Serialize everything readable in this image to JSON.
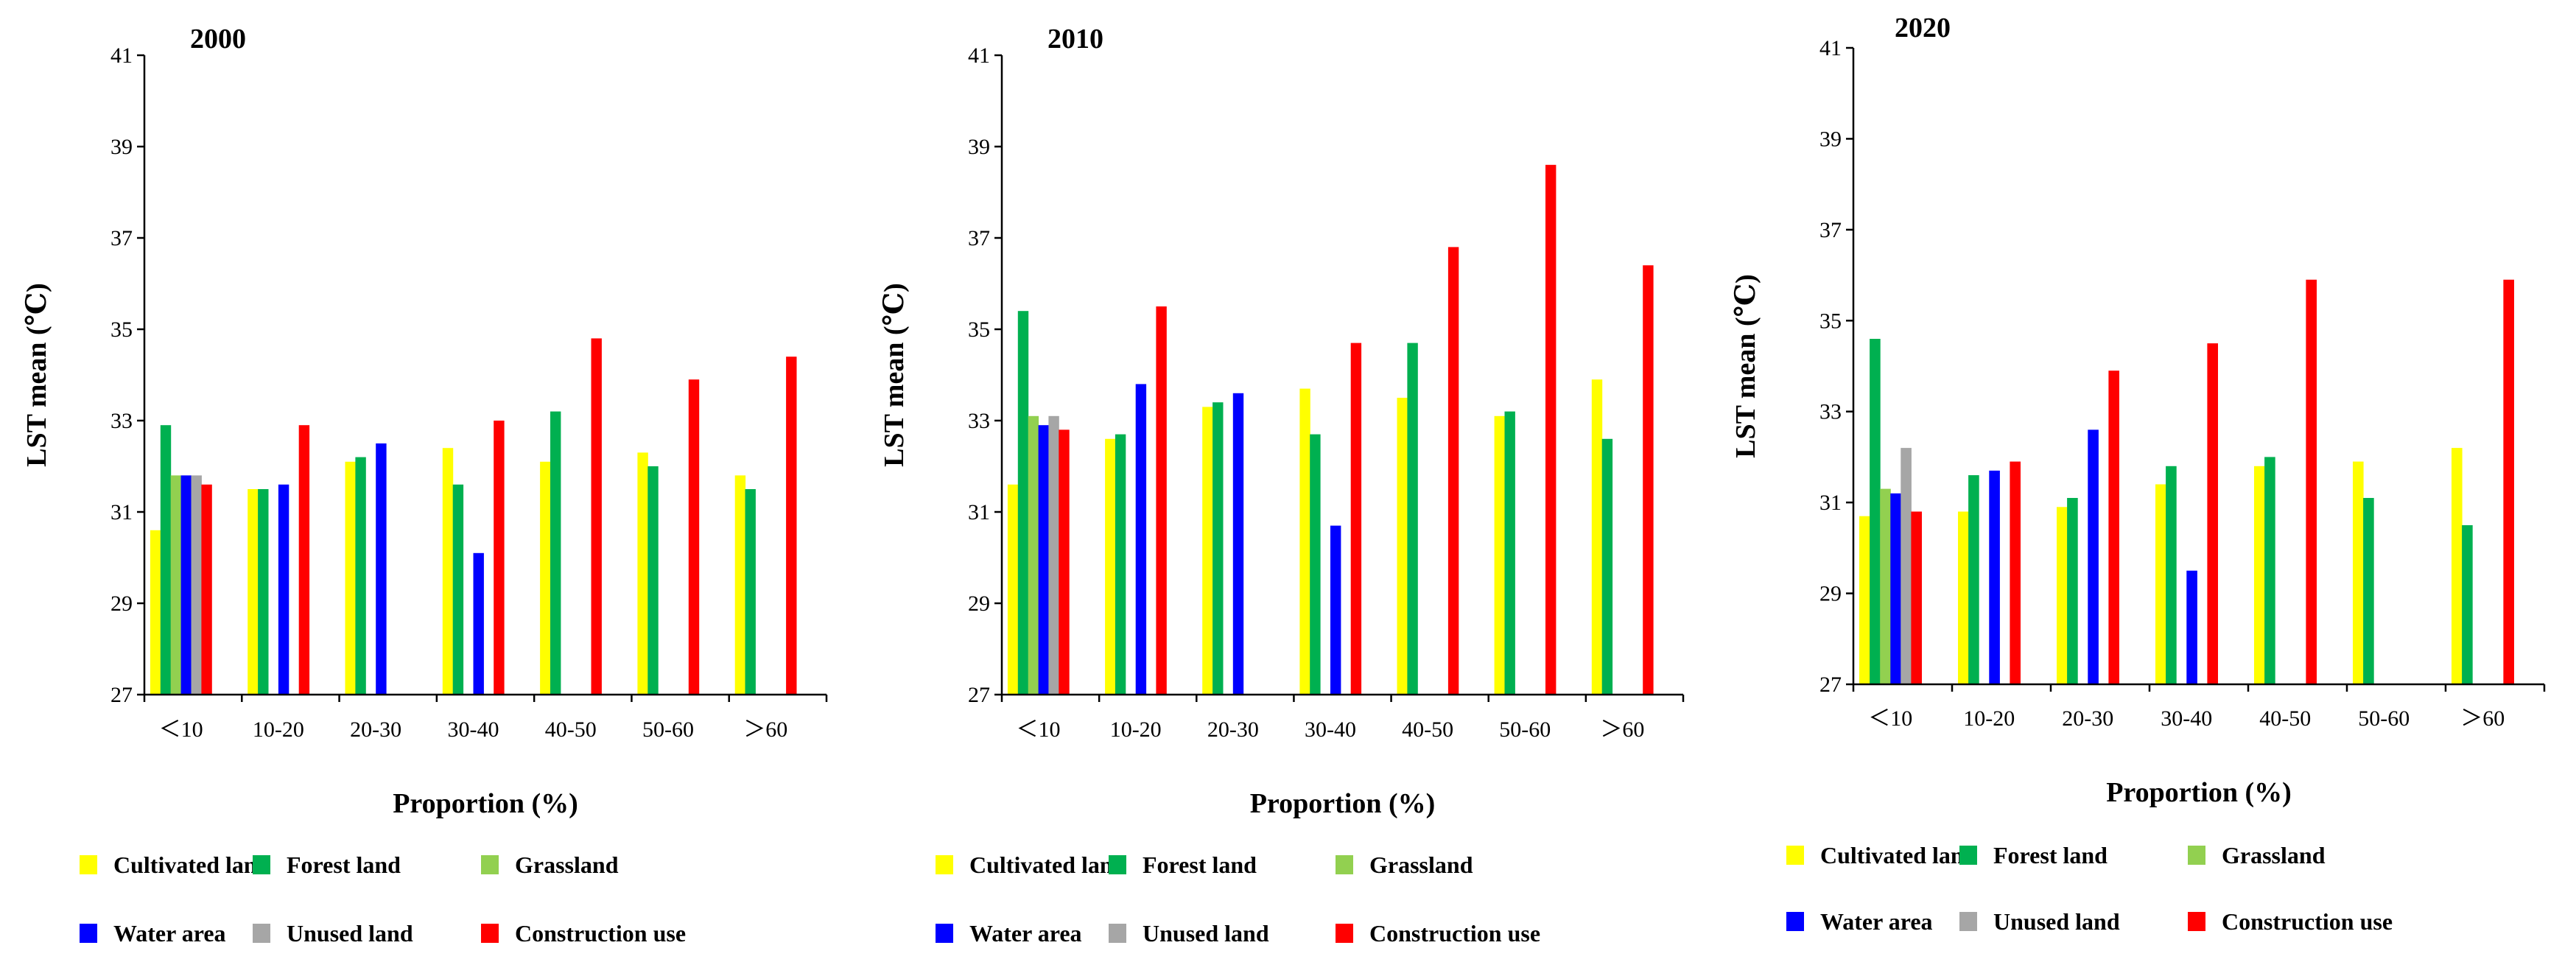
{
  "chart_data": [
    {
      "type": "bar",
      "title": "2000",
      "xlabel": "Proportion (%)",
      "ylabel": "LST mean (℃)",
      "ylim": [
        27,
        41
      ],
      "yticks": [
        27,
        29,
        31,
        33,
        35,
        37,
        39,
        41
      ],
      "grid": false,
      "categories": [
        "＜10",
        "10-20",
        "20-30",
        "30-40",
        "40-50",
        "50-60",
        "＞60"
      ],
      "series": [
        {
          "name": "Cultivated land",
          "color": "#FFFF00",
          "values": [
            30.6,
            31.5,
            32.1,
            32.4,
            32.1,
            32.3,
            31.8
          ]
        },
        {
          "name": "Forest land",
          "color": "#00B050",
          "values": [
            32.9,
            31.5,
            32.2,
            31.6,
            33.2,
            32.0,
            31.5
          ]
        },
        {
          "name": "Grassland",
          "color": "#92D050",
          "values": [
            31.8,
            null,
            null,
            null,
            null,
            null,
            null
          ]
        },
        {
          "name": "Water area",
          "color": "#0000FF",
          "values": [
            31.8,
            31.6,
            32.5,
            30.1,
            null,
            null,
            null
          ]
        },
        {
          "name": "Unused land",
          "color": "#A6A6A6",
          "values": [
            31.8,
            null,
            null,
            null,
            null,
            null,
            null
          ]
        },
        {
          "name": "Construction use",
          "color": "#FF0000",
          "values": [
            31.6,
            32.9,
            null,
            33.0,
            34.8,
            33.9,
            34.4
          ]
        }
      ]
    },
    {
      "type": "bar",
      "title": "2010",
      "xlabel": "Proportion (%)",
      "ylabel": "LST mean (℃)",
      "ylim": [
        27,
        41
      ],
      "yticks": [
        27,
        29,
        31,
        33,
        35,
        37,
        39,
        41
      ],
      "grid": false,
      "categories": [
        "＜10",
        "10-20",
        "20-30",
        "30-40",
        "40-50",
        "50-60",
        "＞60"
      ],
      "series": [
        {
          "name": "Cultivated land",
          "color": "#FFFF00",
          "values": [
            31.6,
            32.6,
            33.3,
            33.7,
            33.5,
            33.1,
            33.9
          ]
        },
        {
          "name": "Forest land",
          "color": "#00B050",
          "values": [
            35.4,
            32.7,
            33.4,
            32.7,
            34.7,
            33.2,
            32.6
          ]
        },
        {
          "name": "Grassland",
          "color": "#92D050",
          "values": [
            33.1,
            null,
            null,
            null,
            null,
            null,
            null
          ]
        },
        {
          "name": "Water area",
          "color": "#0000FF",
          "values": [
            32.9,
            33.8,
            33.6,
            30.7,
            null,
            null,
            null
          ]
        },
        {
          "name": "Unused land",
          "color": "#A6A6A6",
          "values": [
            33.1,
            null,
            null,
            null,
            null,
            null,
            null
          ]
        },
        {
          "name": "Construction use",
          "color": "#FF0000",
          "values": [
            32.8,
            35.5,
            null,
            34.7,
            36.8,
            38.6,
            36.4
          ]
        }
      ]
    },
    {
      "type": "bar",
      "title": "2020",
      "xlabel": "Proportion (%)",
      "ylabel": "LST mean (℃)",
      "ylim": [
        27,
        41
      ],
      "yticks": [
        27,
        29,
        31,
        33,
        35,
        37,
        39,
        41
      ],
      "grid": false,
      "categories": [
        "＜10",
        "10-20",
        "20-30",
        "30-40",
        "40-50",
        "50-60",
        "＞60"
      ],
      "series": [
        {
          "name": "Cultivated land",
          "color": "#FFFF00",
          "values": [
            30.7,
            30.8,
            30.9,
            31.4,
            31.8,
            31.9,
            32.2
          ]
        },
        {
          "name": "Forest land",
          "color": "#00B050",
          "values": [
            34.6,
            31.6,
            31.1,
            31.8,
            32.0,
            31.1,
            30.5
          ]
        },
        {
          "name": "Grassland",
          "color": "#92D050",
          "values": [
            31.3,
            null,
            null,
            null,
            null,
            null,
            null
          ]
        },
        {
          "name": "Water area",
          "color": "#0000FF",
          "values": [
            31.2,
            31.7,
            32.6,
            29.5,
            null,
            null,
            null
          ]
        },
        {
          "name": "Unused land",
          "color": "#A6A6A6",
          "values": [
            32.2,
            null,
            null,
            null,
            null,
            null,
            null
          ]
        },
        {
          "name": "Construction use",
          "color": "#FF0000",
          "values": [
            30.8,
            31.9,
            33.9,
            34.5,
            35.9,
            null,
            35.9
          ]
        }
      ]
    }
  ]
}
